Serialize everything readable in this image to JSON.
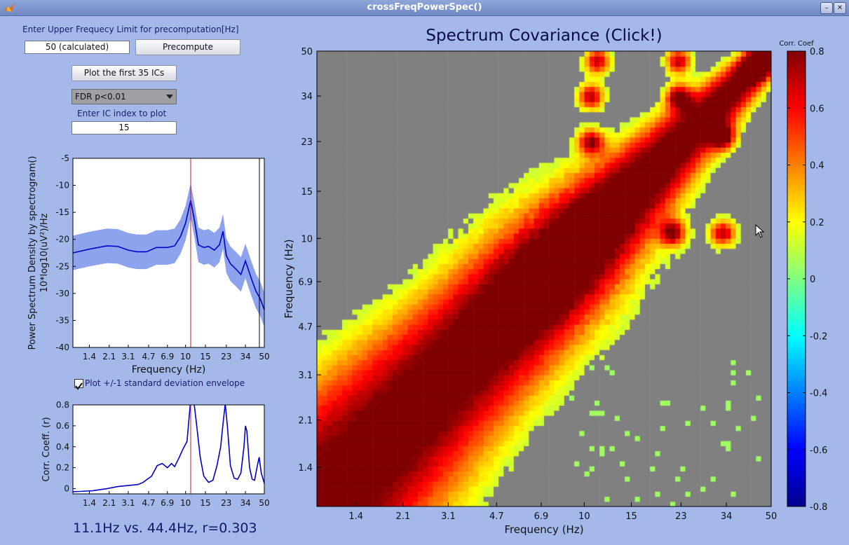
{
  "window": {
    "title": "crossFreqPowerSpec()"
  },
  "controls": {
    "upper_limit_label": "Enter Upper Frequecy Limit for precomputation[Hz]",
    "upper_limit_value": "50 (calculated)",
    "precompute_label": "Precompute",
    "plot_first_label": "Plot the first 35 ICs",
    "fdr_selected": "FDR p<0.01",
    "ic_index_label": "Enter IC index to plot",
    "ic_index_value": "15",
    "envelope_label": "Plot +/-1 standard deviation envelope",
    "envelope_checked": true,
    "status_text": "11.1Hz vs. 44.4Hz, r=0.303"
  },
  "colors": {
    "bg": "#a4b8ea",
    "line": "#0000c8",
    "envelope": "#8ea3ee",
    "marker": "#c81e1e",
    "gray": "#808080"
  },
  "psd_chart": {
    "type": "line",
    "ylabel_line1": "Power Spectrum Density by spectrogram()",
    "ylabel_line2": "10*log10(uV²)/Hz",
    "xlabel": "Frequency (Hz)",
    "x_ticks": [
      "1.4",
      "2.1",
      "3.1",
      "4.7",
      "6.9",
      "10",
      "15",
      "23",
      "34",
      "50"
    ],
    "y_ticks": [
      "-5",
      "-10",
      "-15",
      "-20",
      "-25",
      "-30",
      "-35",
      "-40"
    ],
    "ylim": [
      -40,
      -5
    ],
    "marker_x": 11.1,
    "x": [
      1,
      1.4,
      2,
      2.5,
      3.1,
      3.7,
      4.5,
      5.5,
      6.9,
      8,
      9,
      10,
      11.1,
      12,
      13,
      14.5,
      16,
      18,
      20,
      21.5,
      23,
      25,
      28,
      31,
      34,
      38,
      42,
      46,
      50
    ],
    "y": [
      -22.5,
      -21.8,
      -21.2,
      -21.3,
      -22.0,
      -22.3,
      -22.3,
      -21.5,
      -21.5,
      -21.2,
      -19.5,
      -17.0,
      -12.8,
      -16.5,
      -21.0,
      -21.5,
      -21.3,
      -22.0,
      -21.0,
      -18.5,
      -23.0,
      -24.5,
      -25.5,
      -26.5,
      -24.0,
      -27.0,
      -29.5,
      -31.0,
      -33.0
    ],
    "sd": 3.2
  },
  "corr_chart": {
    "type": "line",
    "ylabel": "Corr. Coeff. (r)",
    "x_ticks": [
      "1.4",
      "2.1",
      "3.1",
      "4.7",
      "6.9",
      "10",
      "15",
      "23",
      "34",
      "50"
    ],
    "y_ticks": [
      "0.8",
      "0.6",
      "0.4",
      "0.2",
      "0"
    ],
    "ylim": [
      -0.05,
      0.8
    ],
    "marker_x": 11.1,
    "x": [
      1,
      1.5,
      2,
      2.5,
      3.1,
      3.8,
      4.2,
      5,
      5.6,
      6.2,
      6.9,
      7.5,
      8,
      8.8,
      9.5,
      10.3,
      11.1,
      11.8,
      12.5,
      13.5,
      14.5,
      16,
      17.5,
      19,
      20.5,
      21.5,
      22.5,
      23.5,
      25,
      27,
      29,
      31,
      33,
      34,
      35,
      37,
      39,
      41,
      43,
      45,
      47,
      50
    ],
    "y": [
      -0.03,
      -0.02,
      0,
      0.02,
      0.03,
      0.04,
      0.06,
      0.12,
      0.22,
      0.24,
      0.2,
      0.24,
      0.21,
      0.3,
      0.38,
      0.45,
      0.85,
      0.85,
      0.62,
      0.3,
      0.12,
      0.06,
      0.08,
      0.22,
      0.4,
      0.62,
      0.81,
      0.6,
      0.22,
      0.1,
      0.09,
      0.15,
      0.4,
      0.6,
      0.55,
      0.2,
      0.09,
      0.08,
      0.2,
      0.3,
      0.15,
      0.05
    ]
  },
  "heatmap": {
    "type": "heatmap",
    "title": "Spectrum Covariance (Click!)",
    "xlabel": "Frequency (Hz)",
    "ylabel": "Frequency (Hz)",
    "x_ticks": [
      "1.4",
      "2.1",
      "3.1",
      "4.7",
      "6.9",
      "10",
      "15",
      "23",
      "34",
      "50"
    ],
    "y_ticks": [
      "50",
      "34",
      "23",
      "15",
      "10",
      "6.9",
      "4.7",
      "3.1",
      "2.1",
      "1.4"
    ],
    "freq_range": [
      1,
      50
    ],
    "colorbar_label": "Corr. Coef",
    "colorbar_ticks": [
      "0.8",
      "0.6",
      "0.4",
      "0.2",
      "0",
      "-0.2",
      "-0.4",
      "-0.6",
      "-0.8"
    ],
    "clim": [
      -0.8,
      0.8
    ],
    "hotspots": [
      [
        10.5,
        11.5
      ],
      [
        10.6,
        23
      ],
      [
        10.6,
        34
      ],
      [
        21.5,
        10.5
      ],
      [
        33,
        10.5
      ],
      [
        22.5,
        34
      ],
      [
        33,
        24
      ],
      [
        22.5,
        46
      ],
      [
        11.2,
        46
      ],
      [
        44,
        44
      ]
    ],
    "nonsig_mask": "gray"
  }
}
